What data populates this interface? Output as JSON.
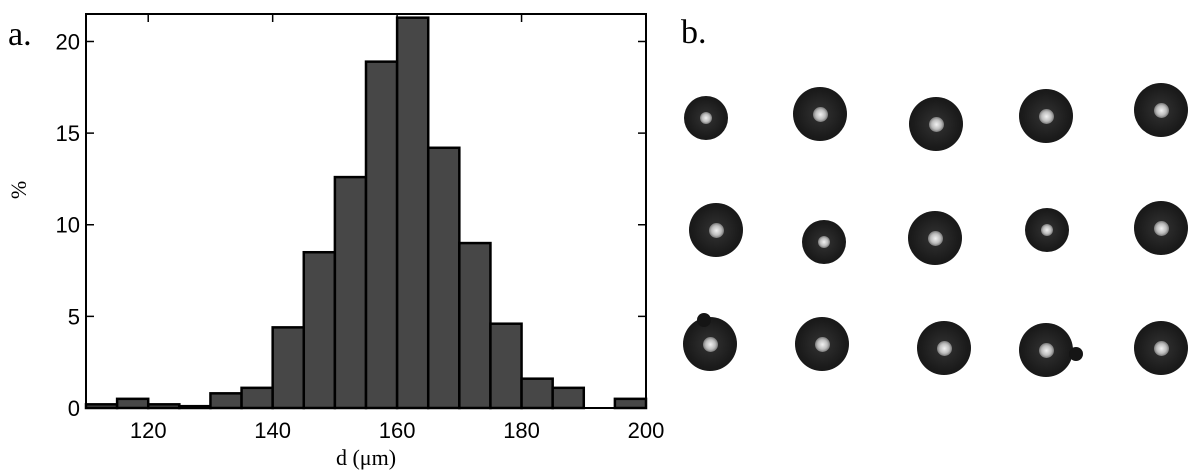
{
  "panel_labels": {
    "a": "a.",
    "b": "b."
  },
  "chart_data": {
    "type": "bar",
    "title": "",
    "xlabel": "d (μm)",
    "ylabel": "%",
    "xlim": [
      110,
      200
    ],
    "ylim": [
      0,
      21.5
    ],
    "bin_width": 5,
    "bin_starts": [
      110,
      115,
      120,
      125,
      130,
      135,
      140,
      145,
      150,
      155,
      160,
      165,
      170,
      175,
      180,
      185,
      190,
      195
    ],
    "values": [
      0.2,
      0.5,
      0.2,
      0.1,
      0.8,
      1.1,
      4.4,
      8.5,
      12.6,
      18.9,
      21.3,
      14.2,
      9.0,
      4.6,
      1.6,
      1.1,
      0.0,
      0.5
    ],
    "x_ticks": [
      120,
      140,
      160,
      180,
      200
    ],
    "y_ticks": [
      0,
      5,
      10,
      15,
      20
    ],
    "grid": false,
    "bar_color": "#474747",
    "edge_color": "#000000"
  },
  "droplets": {
    "description": "",
    "rows": [
      [
        {
          "size": "small"
        },
        {
          "size": "medium"
        },
        {
          "size": "medium"
        },
        {
          "size": "medium"
        },
        {
          "size": "medium",
          "clipped": true
        }
      ],
      [
        {
          "size": "medium"
        },
        {
          "size": "small"
        },
        {
          "size": "medium"
        },
        {
          "size": "small"
        },
        {
          "size": "medium"
        }
      ],
      [
        {
          "size": "medium",
          "satellite": true
        },
        {
          "size": "medium"
        },
        {
          "size": "medium"
        },
        {
          "size": "medium",
          "satellite": true
        },
        {
          "size": "medium"
        }
      ]
    ]
  }
}
